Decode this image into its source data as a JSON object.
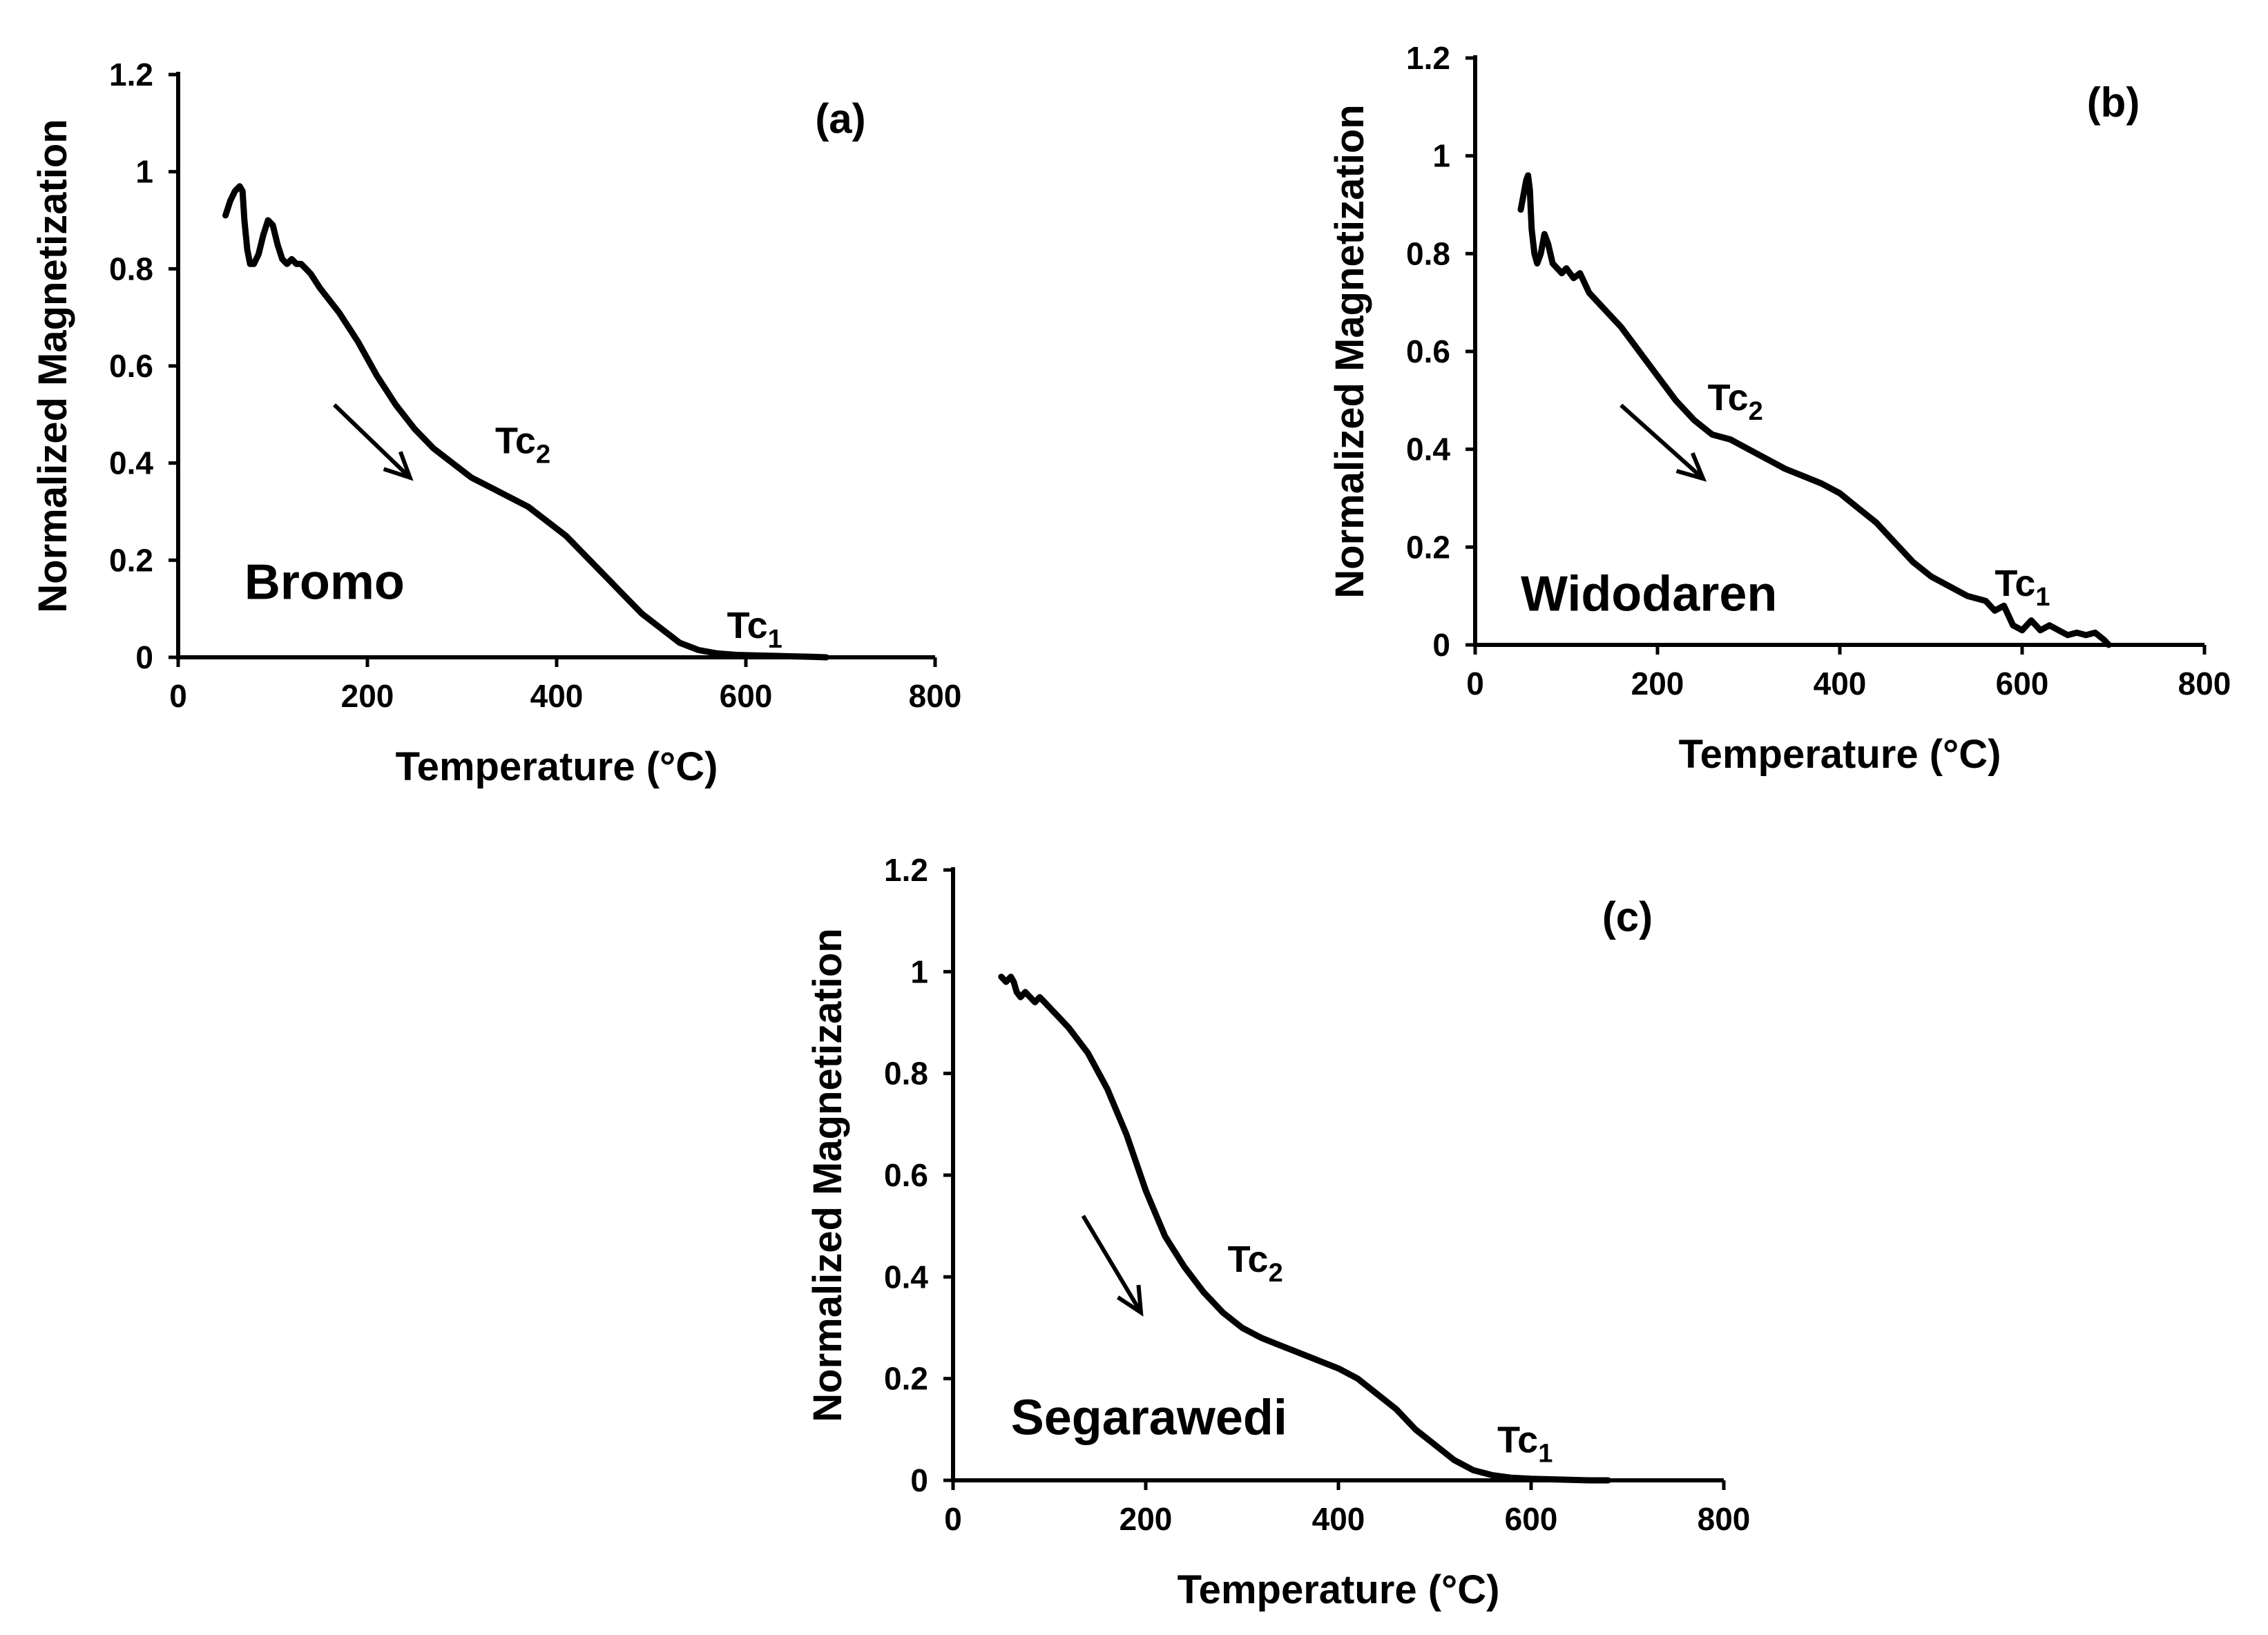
{
  "chart_data": [
    {
      "type": "line",
      "panel": "(a)",
      "sample": "Bromo",
      "xlabel": "Temperature (°C)",
      "ylabel": "Normalized Magnetization",
      "xlim": [
        0,
        800
      ],
      "ylim": [
        0,
        1.2
      ],
      "x_ticks": [
        0,
        200,
        400,
        600,
        800
      ],
      "y_ticks": [
        0,
        0.2,
        0.4,
        0.6,
        0.8,
        1,
        1.2
      ],
      "x_tick_labels": [
        "0",
        "200",
        "400",
        "600",
        "800"
      ],
      "y_tick_labels": [
        "0",
        "0.2",
        "0.4",
        "0.6",
        "0.8",
        "1",
        "1.2"
      ],
      "annotations": [
        {
          "base": "Tc",
          "sub": "2",
          "x": 335,
          "y": 0.42
        },
        {
          "base": "Tc",
          "sub": "1",
          "x": 580,
          "y": 0.04
        }
      ],
      "arrow": {
        "from": [
          165,
          0.52
        ],
        "to": [
          245,
          0.37
        ]
      },
      "sample_label_pos": {
        "x": 70,
        "y": 0.12
      },
      "series": [
        {
          "name": "Bromo",
          "x": [
            50,
            55,
            60,
            65,
            68,
            70,
            73,
            76,
            80,
            85,
            90,
            95,
            100,
            105,
            110,
            115,
            120,
            125,
            130,
            140,
            150,
            170,
            190,
            210,
            230,
            250,
            270,
            290,
            310,
            330,
            350,
            370,
            390,
            410,
            430,
            450,
            470,
            490,
            510,
            530,
            550,
            570,
            590,
            610,
            630,
            650,
            670,
            685
          ],
          "y": [
            0.91,
            0.94,
            0.96,
            0.97,
            0.96,
            0.9,
            0.84,
            0.81,
            0.81,
            0.83,
            0.87,
            0.9,
            0.89,
            0.85,
            0.82,
            0.81,
            0.82,
            0.81,
            0.81,
            0.79,
            0.76,
            0.71,
            0.65,
            0.58,
            0.52,
            0.47,
            0.43,
            0.4,
            0.37,
            0.35,
            0.33,
            0.31,
            0.28,
            0.25,
            0.21,
            0.17,
            0.13,
            0.09,
            0.06,
            0.03,
            0.015,
            0.008,
            0.005,
            0.004,
            0.003,
            0.002,
            0.001,
            0.0
          ]
        }
      ]
    },
    {
      "type": "line",
      "panel": "(b)",
      "sample": "Widodaren",
      "xlabel": "Temperature (°C)",
      "ylabel": "Normalized Magnetization",
      "xlim": [
        0,
        800
      ],
      "ylim": [
        0,
        1.2
      ],
      "x_ticks": [
        0,
        200,
        400,
        600,
        800
      ],
      "y_ticks": [
        0,
        0.2,
        0.4,
        0.6,
        0.8,
        1,
        1.2
      ],
      "x_tick_labels": [
        "0",
        "200",
        "400",
        "600",
        "800"
      ],
      "y_tick_labels": [
        "0",
        "0.2",
        "0.4",
        "0.6",
        "0.8",
        "1",
        "1.2"
      ],
      "annotations": [
        {
          "base": "Tc",
          "sub": "2",
          "x": 255,
          "y": 0.48
        },
        {
          "base": "Tc",
          "sub": "1",
          "x": 570,
          "y": 0.1
        }
      ],
      "arrow": {
        "from": [
          160,
          0.49
        ],
        "to": [
          250,
          0.34
        ]
      },
      "sample_label_pos": {
        "x": 50,
        "y": 0.07
      },
      "series": [
        {
          "name": "Widodaren",
          "x": [
            50,
            53,
            56,
            58,
            60,
            62,
            65,
            68,
            72,
            76,
            80,
            85,
            90,
            95,
            100,
            108,
            115,
            125,
            140,
            160,
            180,
            200,
            220,
            240,
            260,
            280,
            300,
            320,
            340,
            360,
            380,
            400,
            420,
            440,
            460,
            480,
            500,
            520,
            540,
            560,
            570,
            580,
            590,
            600,
            610,
            620,
            630,
            640,
            650,
            660,
            670,
            680,
            690,
            695
          ],
          "y": [
            0.89,
            0.92,
            0.95,
            0.96,
            0.93,
            0.85,
            0.8,
            0.78,
            0.8,
            0.84,
            0.82,
            0.78,
            0.77,
            0.76,
            0.77,
            0.75,
            0.76,
            0.72,
            0.69,
            0.65,
            0.6,
            0.55,
            0.5,
            0.46,
            0.43,
            0.42,
            0.4,
            0.38,
            0.36,
            0.345,
            0.33,
            0.31,
            0.28,
            0.25,
            0.21,
            0.17,
            0.14,
            0.12,
            0.1,
            0.09,
            0.07,
            0.08,
            0.04,
            0.03,
            0.05,
            0.03,
            0.04,
            0.03,
            0.02,
            0.025,
            0.02,
            0.025,
            0.01,
            0.0
          ]
        }
      ]
    },
    {
      "type": "line",
      "panel": "(c)",
      "sample": "Segarawedi",
      "xlabel": "Temperature (°C)",
      "ylabel": "Normalized Magnetization",
      "xlim": [
        0,
        800
      ],
      "ylim": [
        0,
        1.2
      ],
      "x_ticks": [
        0,
        200,
        400,
        600,
        800
      ],
      "y_ticks": [
        0,
        0.2,
        0.4,
        0.6,
        0.8,
        1,
        1.2
      ],
      "x_tick_labels": [
        "0",
        "200",
        "400",
        "600",
        "800"
      ],
      "y_tick_labels": [
        "0",
        "0.2",
        "0.4",
        "0.6",
        "0.8",
        "1",
        "1.2"
      ],
      "annotations": [
        {
          "base": "Tc",
          "sub": "2",
          "x": 285,
          "y": 0.41
        },
        {
          "base": "Tc",
          "sub": "1",
          "x": 565,
          "y": 0.055
        }
      ],
      "arrow": {
        "from": [
          135,
          0.52
        ],
        "to": [
          195,
          0.33
        ]
      },
      "sample_label_pos": {
        "x": 60,
        "y": 0.09
      },
      "series": [
        {
          "name": "Segarawedi",
          "x": [
            50,
            55,
            60,
            63,
            66,
            70,
            75,
            80,
            85,
            90,
            95,
            100,
            110,
            120,
            140,
            160,
            180,
            200,
            220,
            240,
            260,
            280,
            300,
            320,
            340,
            360,
            380,
            400,
            420,
            440,
            460,
            480,
            500,
            520,
            540,
            560,
            580,
            600,
            620,
            640,
            660,
            680
          ],
          "y": [
            0.99,
            0.98,
            0.99,
            0.98,
            0.96,
            0.95,
            0.96,
            0.95,
            0.94,
            0.95,
            0.94,
            0.93,
            0.91,
            0.89,
            0.84,
            0.77,
            0.68,
            0.57,
            0.48,
            0.42,
            0.37,
            0.33,
            0.3,
            0.28,
            0.265,
            0.25,
            0.235,
            0.22,
            0.2,
            0.17,
            0.14,
            0.1,
            0.07,
            0.04,
            0.02,
            0.01,
            0.005,
            0.003,
            0.002,
            0.001,
            0.0,
            0.0
          ]
        }
      ]
    }
  ]
}
